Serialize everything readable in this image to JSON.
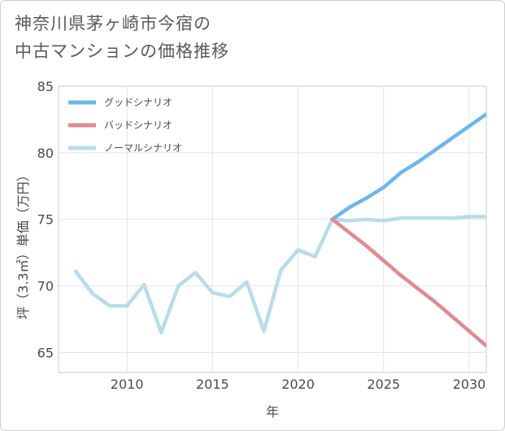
{
  "title_lines": [
    "神奈川県茅ヶ崎市今宿の",
    "中古マンションの価格推移"
  ],
  "chart_data": {
    "type": "line",
    "title": "神奈川県茅ヶ崎市今宿の中古マンションの価格推移",
    "xlabel": "年",
    "ylabel": "坪（3.3㎡）単価（万円）",
    "xlim": [
      2006,
      2031
    ],
    "ylim": [
      63.5,
      85
    ],
    "xticks": [
      2010,
      2015,
      2020,
      2025,
      2030
    ],
    "yticks": [
      65,
      70,
      75,
      80,
      85
    ],
    "grid": true,
    "legend_position": "top-left",
    "series": [
      {
        "name": "グッドシナリオ",
        "color": "#6bb8ec",
        "x": [
          2022,
          2023,
          2024,
          2025,
          2026,
          2027,
          2028,
          2029,
          2030,
          2031
        ],
        "values": [
          75.0,
          75.9,
          76.6,
          77.4,
          78.5,
          79.3,
          80.2,
          81.1,
          82.0,
          82.9
        ]
      },
      {
        "name": "バッドシナリオ",
        "color": "#df8b91",
        "x": [
          2022,
          2023,
          2024,
          2025,
          2026,
          2027,
          2028,
          2029,
          2030,
          2031
        ],
        "values": [
          75.0,
          74.0,
          73.0,
          71.9,
          70.8,
          69.8,
          68.8,
          67.7,
          66.6,
          65.5
        ]
      },
      {
        "name": "ノーマルシナリオ",
        "color": "#b9dcec",
        "x": [
          2007,
          2008,
          2009,
          2010,
          2011,
          2012,
          2013,
          2014,
          2015,
          2016,
          2017,
          2018,
          2019,
          2020,
          2021,
          2022,
          2023,
          2024,
          2025,
          2026,
          2027,
          2028,
          2029,
          2030,
          2031
        ],
        "values": [
          71.1,
          69.4,
          68.5,
          68.5,
          70.1,
          66.5,
          70.0,
          71.0,
          69.5,
          69.2,
          70.3,
          66.6,
          71.2,
          72.7,
          72.2,
          75.0,
          74.9,
          75.0,
          74.9,
          75.1,
          75.1,
          75.1,
          75.1,
          75.2,
          75.2
        ]
      }
    ]
  }
}
